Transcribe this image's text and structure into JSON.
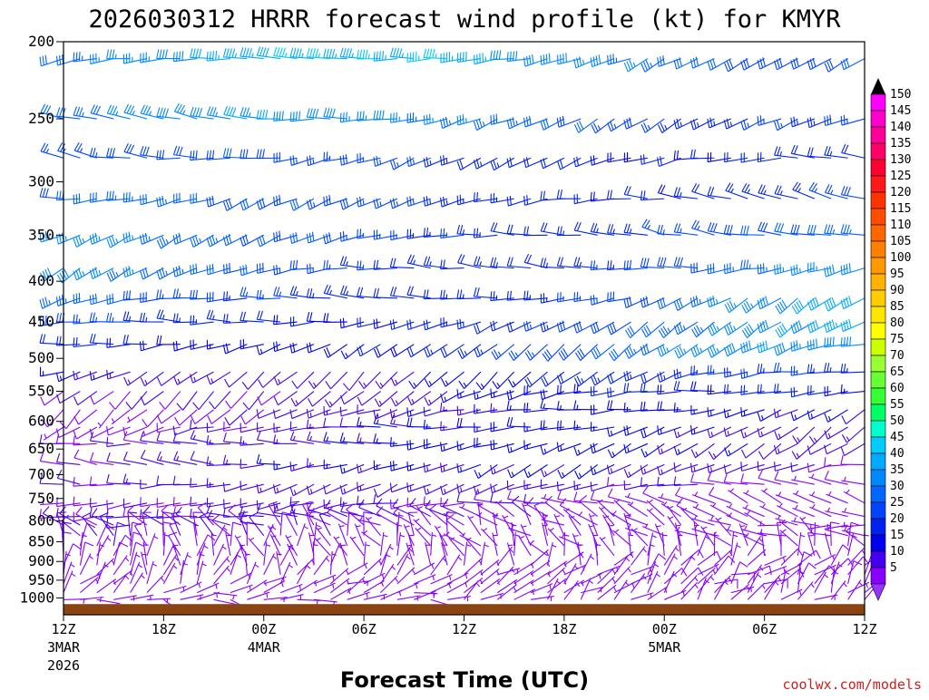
{
  "chart_data": {
    "type": "wind-barb-profile",
    "title": "2026030312 HRRR forecast wind profile (kt) for KMYR",
    "xlabel": "Forecast Time (UTC)",
    "credit": "coolwx.com/models",
    "y_axis": {
      "scale": "log-pressure",
      "range": [
        200,
        1050
      ],
      "ticks": [
        200,
        250,
        300,
        350,
        400,
        450,
        500,
        550,
        600,
        650,
        700,
        750,
        800,
        850,
        900,
        950,
        1000
      ]
    },
    "x_axis": {
      "range_hours": [
        0,
        48
      ],
      "ticks": [
        {
          "h": 0,
          "line1": "12Z",
          "line2": "3MAR",
          "line3": "2026"
        },
        {
          "h": 6,
          "line1": "18Z",
          "line2": "",
          "line3": ""
        },
        {
          "h": 12,
          "line1": "00Z",
          "line2": "4MAR",
          "line3": ""
        },
        {
          "h": 18,
          "line1": "06Z",
          "line2": "",
          "line3": ""
        },
        {
          "h": 24,
          "line1": "12Z",
          "line2": "",
          "line3": ""
        },
        {
          "h": 30,
          "line1": "18Z",
          "line2": "",
          "line3": ""
        },
        {
          "h": 36,
          "line1": "00Z",
          "line2": "5MAR",
          "line3": ""
        },
        {
          "h": 42,
          "line1": "06Z",
          "line2": "",
          "line3": ""
        },
        {
          "h": 48,
          "line1": "12Z",
          "line2": "",
          "line3": ""
        }
      ]
    },
    "colorbar": {
      "units": "kt",
      "labels": [
        "150",
        "145",
        "140",
        "135",
        "130",
        "125",
        "120",
        "115",
        "110",
        "105",
        "100",
        "95",
        "90",
        "85",
        "80",
        "75",
        "70",
        "65",
        "60",
        "55",
        "50",
        "45",
        "40",
        "35",
        "30",
        "25",
        "20",
        "15",
        "10",
        "5"
      ],
      "colors": [
        "#ff00ff",
        "#ff00cc",
        "#ff0099",
        "#ff0066",
        "#ff0033",
        "#ff1a1a",
        "#ff3300",
        "#ff4d00",
        "#ff6600",
        "#ff8000",
        "#ff9900",
        "#ffb300",
        "#ffcc00",
        "#ffe600",
        "#ffff00",
        "#ccff00",
        "#99ff33",
        "#66ff33",
        "#33ff33",
        "#00ff66",
        "#00ffcc",
        "#00ccff",
        "#00aaff",
        "#0088ff",
        "#0066ff",
        "#0044ff",
        "#0022ee",
        "#0000ee",
        "#4400ee",
        "#8800ff"
      ],
      "top_arrow_color": "#000000",
      "bottom_arrow_color": "#9933ff"
    },
    "terrain_color": "#8b4513",
    "wind_levels_hpa": [
      210,
      250,
      280,
      315,
      350,
      385,
      420,
      450,
      480,
      520,
      550,
      580,
      610,
      640,
      680,
      720,
      760,
      790,
      810,
      835,
      860,
      885,
      910,
      935,
      960,
      985,
      1005
    ],
    "wind_speed_by_level_kt": [
      37,
      32,
      24,
      27,
      31,
      33,
      32,
      30,
      28,
      22,
      18,
      15,
      15,
      15,
      14,
      12,
      10,
      10,
      9,
      9,
      8,
      7,
      7,
      7,
      6,
      5,
      4
    ],
    "wind_dir_by_level_deg": [
      255,
      260,
      265,
      265,
      262,
      258,
      255,
      252,
      248,
      245,
      245,
      245,
      250,
      255,
      260,
      265,
      275,
      285,
      300,
      320,
      340,
      0,
      20,
      35,
      45,
      55,
      70
    ],
    "hours_per_barb": 1
  }
}
